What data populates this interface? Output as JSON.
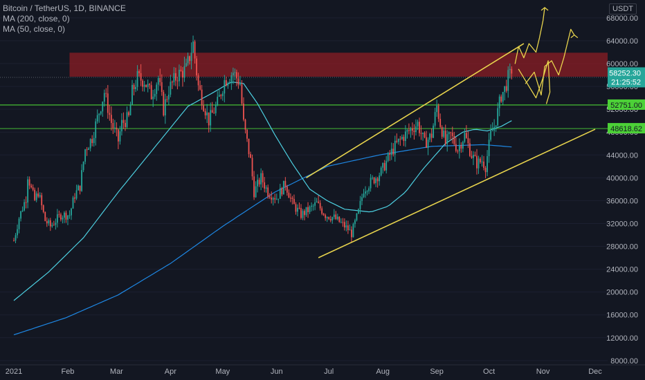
{
  "legend": {
    "symbol": "Bitcoin / TetherUS, 1D, BINANCE",
    "ma1": "MA (200, close, 0)",
    "ma2": "MA (50, close, 0)"
  },
  "axis_unit": "USDT",
  "price_tag": {
    "price": "58252.30",
    "countdown": "21:25:52"
  },
  "level_tags": [
    "52751.00",
    "48618.62"
  ],
  "colors": {
    "background": "#131722",
    "up": "#26a69a",
    "down": "#ef5350",
    "ma200": "#1e88e5",
    "ma50": "#4dd0e1",
    "channel": "#e8d44d",
    "level": "#4cd137",
    "zone": "#8b1d24",
    "price_tag": "#26a69a"
  },
  "chart_data": {
    "type": "candlestick",
    "x_ticks": [
      "2021",
      "Feb",
      "Mar",
      "Apr",
      "May",
      "Jun",
      "Jul",
      "Aug",
      "Sep",
      "Oct",
      "Nov",
      "Dec"
    ],
    "y_ticks": [
      8000,
      12000,
      16000,
      20000,
      24000,
      28000,
      32000,
      36000,
      40000,
      44000,
      48000,
      52000,
      56000,
      60000,
      64000,
      68000
    ],
    "ylim": [
      7000,
      71000
    ],
    "days_range": [
      0,
      365
    ],
    "close_anchors": [
      [
        0,
        29000
      ],
      [
        3,
        33000
      ],
      [
        7,
        36500
      ],
      [
        8,
        40500
      ],
      [
        10,
        38000
      ],
      [
        12,
        36000
      ],
      [
        14,
        37500
      ],
      [
        18,
        32500
      ],
      [
        21,
        31500
      ],
      [
        27,
        33500
      ],
      [
        32,
        33500
      ],
      [
        35,
        37000
      ],
      [
        38,
        38500
      ],
      [
        41,
        45000
      ],
      [
        45,
        47000
      ],
      [
        52,
        55000
      ],
      [
        56,
        49700
      ],
      [
        60,
        46500
      ],
      [
        62,
        49500
      ],
      [
        66,
        50500
      ],
      [
        68,
        55000
      ],
      [
        71,
        57500
      ],
      [
        75,
        57000
      ],
      [
        79,
        54500
      ],
      [
        83,
        57500
      ],
      [
        86,
        52000
      ],
      [
        89,
        55500
      ],
      [
        94,
        58000
      ],
      [
        99,
        59000
      ],
      [
        103,
        63500
      ],
      [
        106,
        56000
      ],
      [
        112,
        50000
      ],
      [
        117,
        53000
      ],
      [
        121,
        57000
      ],
      [
        126,
        58500
      ],
      [
        130,
        56500
      ],
      [
        132,
        49500
      ],
      [
        136,
        43000
      ],
      [
        138,
        37500
      ],
      [
        142,
        40000
      ],
      [
        146,
        37500
      ],
      [
        151,
        36500
      ],
      [
        156,
        39000
      ],
      [
        160,
        35500
      ],
      [
        165,
        33500
      ],
      [
        170,
        34500
      ],
      [
        174,
        35500
      ],
      [
        179,
        33500
      ],
      [
        184,
        33000
      ],
      [
        189,
        31800
      ],
      [
        192,
        31000
      ],
      [
        194,
        30200
      ],
      [
        198,
        34000
      ],
      [
        201,
        38000
      ],
      [
        206,
        39500
      ],
      [
        211,
        41000
      ],
      [
        216,
        44000
      ],
      [
        219,
        45500
      ],
      [
        223,
        47000
      ],
      [
        228,
        48500
      ],
      [
        232,
        49500
      ],
      [
        236,
        46000
      ],
      [
        240,
        47500
      ],
      [
        243,
        52500
      ],
      [
        245,
        49500
      ],
      [
        248,
        46000
      ],
      [
        251,
        47500
      ],
      [
        255,
        45000
      ],
      [
        259,
        47500
      ],
      [
        263,
        44000
      ],
      [
        266,
        42500
      ],
      [
        269,
        43000
      ],
      [
        271,
        42000
      ],
      [
        274,
        47500
      ],
      [
        276,
        49000
      ],
      [
        278,
        51500
      ],
      [
        280,
        54500
      ],
      [
        282,
        55500
      ],
      [
        284,
        57500
      ],
      [
        286,
        58252.3
      ]
    ],
    "ma200": [
      [
        0,
        12500
      ],
      [
        30,
        15500
      ],
      [
        60,
        19500
      ],
      [
        90,
        25000
      ],
      [
        120,
        31500
      ],
      [
        150,
        37500
      ],
      [
        180,
        42000
      ],
      [
        210,
        44000
      ],
      [
        240,
        45500
      ],
      [
        270,
        45800
      ],
      [
        286,
        45400
      ]
    ],
    "ma50": [
      [
        0,
        18500
      ],
      [
        20,
        23500
      ],
      [
        40,
        29500
      ],
      [
        60,
        37500
      ],
      [
        80,
        45000
      ],
      [
        100,
        52500
      ],
      [
        115,
        55000
      ],
      [
        125,
        56800
      ],
      [
        132,
        56500
      ],
      [
        140,
        53000
      ],
      [
        150,
        47500
      ],
      [
        160,
        42500
      ],
      [
        170,
        38000
      ],
      [
        180,
        36000
      ],
      [
        190,
        34500
      ],
      [
        205,
        34000
      ],
      [
        215,
        35000
      ],
      [
        225,
        37500
      ],
      [
        235,
        41500
      ],
      [
        248,
        46000
      ],
      [
        258,
        48000
      ],
      [
        265,
        48500
      ],
      [
        272,
        48200
      ],
      [
        280,
        49000
      ],
      [
        286,
        50000
      ]
    ],
    "horizontal_levels": [
      52751,
      48618.62
    ],
    "resistance_zone": [
      57700,
      61900
    ],
    "channel_upper": [
      [
        168,
        40000
      ],
      [
        293,
        63500
      ]
    ],
    "channel_lower": [
      [
        175,
        26000
      ],
      [
        334,
        48500
      ]
    ]
  }
}
